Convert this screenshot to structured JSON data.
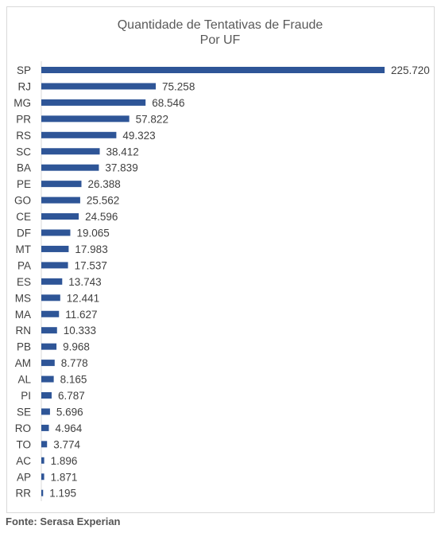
{
  "chart_data": {
    "type": "bar",
    "orientation": "horizontal",
    "title": [
      "Quantidade de Tentativas de Fraude",
      "Por UF"
    ],
    "categories": [
      "SP",
      "RJ",
      "MG",
      "PR",
      "RS",
      "SC",
      "BA",
      "PE",
      "GO",
      "CE",
      "DF",
      "MT",
      "PA",
      "ES",
      "MS",
      "MA",
      "RN",
      "PB",
      "AM",
      "AL",
      "PI",
      "SE",
      "RO",
      "TO",
      "AC",
      "AP",
      "RR"
    ],
    "values": [
      225720,
      75258,
      68546,
      57822,
      49323,
      38412,
      37839,
      26388,
      25562,
      24596,
      19065,
      17983,
      17537,
      13743,
      12441,
      11627,
      10333,
      9968,
      8778,
      8165,
      6787,
      5696,
      4964,
      3774,
      1896,
      1871,
      1195
    ],
    "value_labels": [
      "225.720",
      "75.258",
      "68.546",
      "57.822",
      "49.323",
      "38.412",
      "37.839",
      "26.388",
      "25.562",
      "24.596",
      "19.065",
      "17.983",
      "17.537",
      "13.743",
      "12.441",
      "11.627",
      "10.333",
      "9.968",
      "8.778",
      "8.165",
      "6.787",
      "5.696",
      "4.964",
      "3.774",
      "1.896",
      "1.871",
      "1.195"
    ],
    "xlim": [
      0,
      225720
    ],
    "grid": false,
    "legend": "none",
    "bar_color": "#2e5597"
  },
  "footer": {
    "source": "Fonte: Serasa Experian"
  }
}
